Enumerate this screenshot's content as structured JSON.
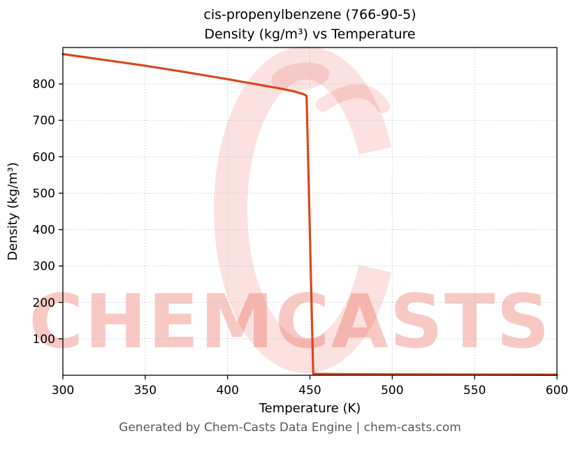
{
  "title": {
    "line1": "cis-propenylbenzene (766-90-5)",
    "line2": "Density (kg/m³) vs Temperature"
  },
  "footer": {
    "text": "Generated by Chem-Casts Data Engine | chem-casts.com"
  },
  "watermark": {
    "text": "CHEMCASTS",
    "brand_color": "#e74c3c"
  },
  "chart_data": {
    "type": "line",
    "title": "cis-propenylbenzene (766-90-5) Density (kg/m³) vs Temperature",
    "xlabel": "Temperature (K)",
    "ylabel": "Density (kg/m³)",
    "xlim": [
      300,
      600
    ],
    "ylim": [
      0,
      900
    ],
    "xticks": [
      300,
      350,
      400,
      450,
      500,
      550,
      600
    ],
    "yticks": [
      100,
      200,
      300,
      400,
      500,
      600,
      700,
      800
    ],
    "grid": true,
    "grid_style": "dotted",
    "series": [
      {
        "name": "Density",
        "color": "#d9481c",
        "x": [
          300,
          325,
          350,
          375,
          400,
          415,
          430,
          440,
          446,
          448,
          452,
          470,
          500,
          550,
          600
        ],
        "y": [
          882,
          866,
          850,
          832,
          813,
          801,
          789,
          780,
          772,
          767,
          4,
          3,
          2.5,
          2,
          1.5
        ]
      }
    ]
  }
}
